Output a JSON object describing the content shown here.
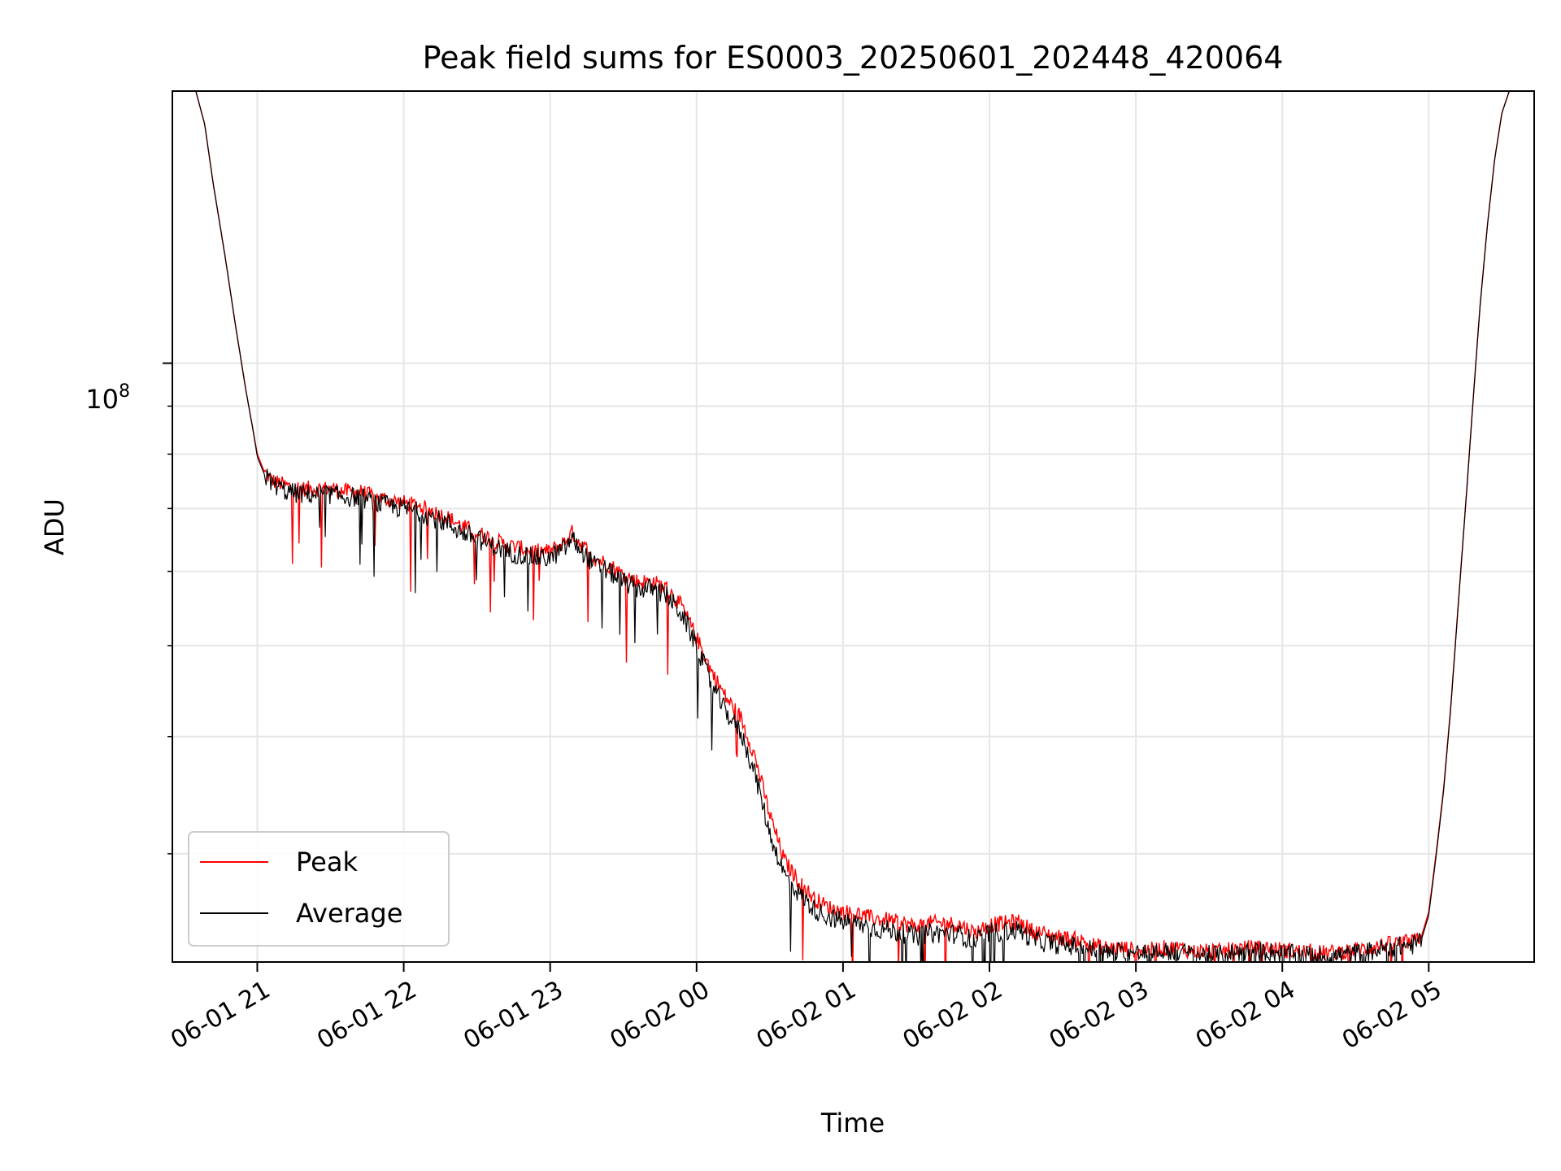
{
  "chart_data": {
    "type": "line",
    "title": "Peak field sums for ES0003_20250601_202448_420064",
    "xlabel": "Time",
    "ylabel": "ADU",
    "yscale": "log",
    "ylim": [
      23000000,
      195000000
    ],
    "xlim_hours": [
      -0.58,
      8.72
    ],
    "grid": true,
    "legend_position": "lower-left",
    "x_ticks": [
      {
        "label": "06-01 21",
        "hour": 0
      },
      {
        "label": "06-01 22",
        "hour": 1
      },
      {
        "label": "06-01 23",
        "hour": 2
      },
      {
        "label": "06-02 00",
        "hour": 3
      },
      {
        "label": "06-02 01",
        "hour": 4
      },
      {
        "label": "06-02 02",
        "hour": 5
      },
      {
        "label": "06-02 03",
        "hour": 6
      },
      {
        "label": "06-02 04",
        "hour": 7
      },
      {
        "label": "06-02 05",
        "hour": 8
      }
    ],
    "y_major_tick": {
      "base": "10",
      "exp": "8",
      "value": 100000000
    },
    "y_minor_ticks": [
      30000000,
      40000000,
      50000000,
      60000000,
      70000000,
      80000000,
      90000000,
      200000000
    ],
    "series": [
      {
        "name": "Peak",
        "color": "#ff0000",
        "x_hours": [
          -0.42,
          -0.36,
          -0.3,
          -0.22,
          -0.15,
          -0.08,
          -0.03,
          0,
          0.05,
          0.1,
          0.2,
          0.3,
          0.4,
          0.5,
          0.6,
          0.7,
          0.8,
          0.9,
          1.0,
          1.1,
          1.2,
          1.3,
          1.4,
          1.5,
          1.6,
          1.7,
          1.8,
          1.9,
          2.0,
          2.1,
          2.15,
          2.2,
          2.3,
          2.4,
          2.5,
          2.6,
          2.7,
          2.8,
          2.9,
          3.0,
          3.1,
          3.2,
          3.3,
          3.4,
          3.5,
          3.6,
          3.7,
          3.8,
          3.9,
          4.0,
          4.1,
          4.2,
          4.3,
          4.4,
          4.5,
          4.6,
          4.7,
          4.8,
          4.9,
          5.0,
          5.1,
          5.2,
          5.3,
          5.4,
          5.5,
          5.6,
          5.7,
          5.8,
          5.9,
          6.0,
          6.1,
          6.2,
          6.3,
          6.4,
          6.5,
          6.6,
          6.7,
          6.8,
          6.9,
          7.0,
          7.1,
          7.2,
          7.3,
          7.4,
          7.5,
          7.6,
          7.7,
          7.8,
          7.9,
          7.95,
          8.0,
          8.05,
          8.1,
          8.15,
          8.2,
          8.25,
          8.3,
          8.35,
          8.4,
          8.45,
          8.5,
          8.55
        ],
        "values": [
          195000000,
          180000000,
          155000000,
          130000000,
          110000000,
          94000000,
          85000000,
          80000000,
          76500000,
          75000000,
          74000000,
          73500000,
          73500000,
          73500000,
          73000000,
          73000000,
          72000000,
          71500000,
          71000000,
          70500000,
          69500000,
          68500000,
          67000000,
          66000000,
          65000000,
          64000000,
          63500000,
          63000000,
          63000000,
          64500000,
          66000000,
          64500000,
          62000000,
          61000000,
          59500000,
          58500000,
          58500000,
          57500000,
          55000000,
          51000000,
          47000000,
          44000000,
          42000000,
          38000000,
          33000000,
          29500000,
          28000000,
          26900000,
          26300000,
          26000000,
          25900000,
          25600000,
          25500000,
          25300000,
          25100000,
          25300000,
          25300000,
          25200000,
          24700000,
          25200000,
          25300000,
          25400000,
          24800000,
          24600000,
          24400000,
          24300000,
          24000000,
          23800000,
          23800000,
          23700000,
          23700000,
          23800000,
          23800000,
          23600000,
          23600000,
          23600000,
          23800000,
          23800000,
          23800000,
          23700000,
          23600000,
          23600000,
          23500000,
          23600000,
          23700000,
          23800000,
          24000000,
          24100000,
          24200000,
          24500000,
          26000000,
          30000000,
          35000000,
          43000000,
          55000000,
          70000000,
          90000000,
          115000000,
          140000000,
          165000000,
          185000000,
          195000000
        ]
      },
      {
        "name": "Average",
        "color": "#000000",
        "x_hours": [
          -0.42,
          -0.36,
          -0.3,
          -0.22,
          -0.15,
          -0.08,
          -0.03,
          0,
          0.05,
          0.1,
          0.2,
          0.3,
          0.4,
          0.5,
          0.6,
          0.7,
          0.8,
          0.9,
          1.0,
          1.1,
          1.2,
          1.3,
          1.4,
          1.5,
          1.6,
          1.7,
          1.8,
          1.9,
          2.0,
          2.1,
          2.15,
          2.2,
          2.3,
          2.4,
          2.5,
          2.6,
          2.7,
          2.8,
          2.9,
          3.0,
          3.1,
          3.2,
          3.3,
          3.4,
          3.5,
          3.6,
          3.7,
          3.8,
          3.9,
          4.0,
          4.1,
          4.2,
          4.3,
          4.4,
          4.5,
          4.6,
          4.7,
          4.8,
          4.9,
          5.0,
          5.1,
          5.2,
          5.3,
          5.4,
          5.5,
          5.6,
          5.7,
          5.8,
          5.9,
          6.0,
          6.1,
          6.2,
          6.3,
          6.4,
          6.5,
          6.6,
          6.7,
          6.8,
          6.9,
          7.0,
          7.1,
          7.2,
          7.3,
          7.4,
          7.5,
          7.6,
          7.7,
          7.8,
          7.9,
          7.95,
          8.0,
          8.05,
          8.1,
          8.15,
          8.2,
          8.25,
          8.3,
          8.35,
          8.4,
          8.45,
          8.5,
          8.55
        ],
        "values": [
          195000000,
          180000000,
          155000000,
          130000000,
          110000000,
          94000000,
          85000000,
          79500000,
          76000000,
          74500000,
          73000000,
          72500000,
          72500000,
          72500000,
          72000000,
          72000000,
          71000000,
          70500000,
          70000000,
          69500000,
          68500000,
          67500000,
          66000000,
          65000000,
          64000000,
          63000000,
          62500000,
          62000000,
          62000000,
          63500000,
          65000000,
          63500000,
          61000000,
          60000000,
          58500000,
          57500000,
          57500000,
          56500000,
          54000000,
          50000000,
          45500000,
          42500000,
          40500000,
          36500000,
          31500000,
          28500000,
          27200000,
          26200000,
          25700000,
          25400000,
          25300000,
          25000000,
          24900000,
          24700000,
          24500000,
          24700000,
          24700000,
          24600000,
          24200000,
          24700000,
          24800000,
          24900000,
          24300000,
          24100000,
          24000000,
          23900000,
          23700000,
          23500000,
          23600000,
          23500000,
          23500000,
          23600000,
          23600000,
          23400000,
          23400000,
          23400000,
          23600000,
          23600000,
          23600000,
          23500000,
          23400000,
          23400000,
          23300000,
          23400000,
          23500000,
          23600000,
          23800000,
          23900000,
          24000000,
          24300000,
          25800000,
          29800000,
          34800000,
          42800000,
          54800000,
          69800000,
          89800000,
          114800000,
          139800000,
          164800000,
          184800000,
          195000000
        ]
      }
    ]
  }
}
